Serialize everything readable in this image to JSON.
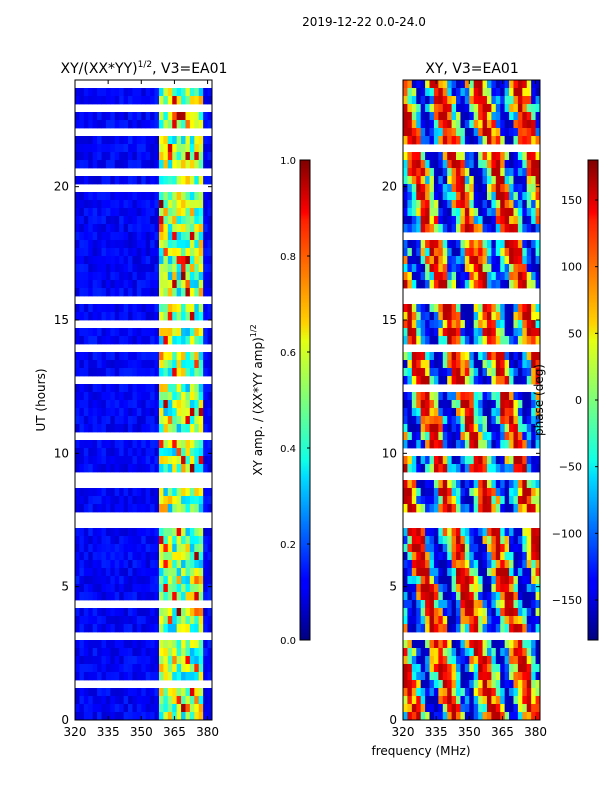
{
  "figure": {
    "suptitle": "2019-12-22 0.0-24.0",
    "shared_xlabel": "frequency (MHz)",
    "shared_ylabel": "UT (hours)"
  },
  "chart_data": [
    {
      "type": "heatmap",
      "title_main": "XY/(XX*YY)",
      "title_sup": "1/2",
      "title_tail": ", V3=EA01",
      "x": [
        320,
        335,
        350,
        365,
        380
      ],
      "xlim": [
        320,
        382
      ],
      "y": [
        0,
        5,
        10,
        15,
        20
      ],
      "ylim": [
        0,
        24
      ],
      "colormap": "jet",
      "colorbar": {
        "label_main": "XY amp. / (XX*YY amp)",
        "label_sup": "1/2",
        "ticks": [
          0.0,
          0.2,
          0.4,
          0.6,
          0.8,
          1.0
        ],
        "tick_labels": [
          "0.0",
          "0.2",
          "0.4",
          "0.6",
          "0.8",
          "1.0"
        ],
        "range": [
          0.0,
          1.0
        ]
      },
      "background_value": 0.12,
      "bright_band_MHz": [
        359,
        377
      ],
      "flagged_bands_hours": [
        [
          7.3,
          7.9
        ],
        [
          13.9,
          14.2
        ],
        [
          15.7,
          15.9
        ],
        [
          3.1,
          3.3
        ]
      ]
    },
    {
      "type": "heatmap",
      "title": "XY, V3=EA01",
      "x": [
        320,
        335,
        350,
        365,
        380
      ],
      "xlim": [
        320,
        382
      ],
      "y": [
        0,
        5,
        10,
        15,
        20
      ],
      "ylim": [
        0,
        24
      ],
      "colormap": "jet",
      "colorbar": {
        "label": "phase (deg)",
        "ticks": [
          -150,
          -100,
          -50,
          0,
          50,
          100,
          150
        ],
        "tick_labels": [
          "−150",
          "−100",
          "−50",
          "0",
          "50",
          "100",
          "150"
        ],
        "range": [
          -180,
          180
        ]
      },
      "flagged_bands_hours": [
        [
          7.3,
          7.9
        ],
        [
          13.9,
          14.2
        ],
        [
          15.7,
          15.9
        ],
        [
          3.1,
          3.3
        ]
      ]
    }
  ],
  "colors": {
    "axis": "#000000",
    "flag": "#ffffff"
  }
}
